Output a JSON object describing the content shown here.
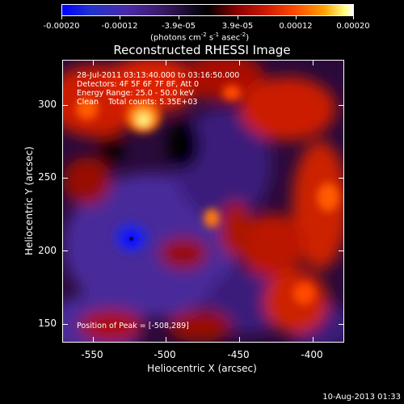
{
  "colorbar": {
    "ticks": [
      "-0.00020",
      "-0.00012",
      "-3.9e-05",
      "3.9e-05",
      "0.00012",
      "0.00020"
    ],
    "unit": "(photons cm",
    "unit_exp1": "-2",
    "unit_mid1": " s",
    "unit_exp2": "-1",
    "unit_mid2": " asec",
    "unit_exp3": "-2",
    "unit_end": ")"
  },
  "title": "Reconstructed RHESSI Image",
  "overlay": {
    "line1": "28-Jul-2011 03:13:40.000 to 03:16:50.000",
    "line2": "Detectors: 4F 5F 6F 7F 8F, Att 0",
    "line3": "Energy Range: 25.0 - 50.0 keV",
    "line4": "Clean    Total counts: 5.35E+03",
    "peak": "Position of Peak = [-508,289]"
  },
  "axes": {
    "xlabel": "Heliocentric X (arcsec)",
    "ylabel": "Heliocentric Y (arcsec)",
    "xticks": [
      "-550",
      "-500",
      "-450",
      "-400"
    ],
    "yticks": [
      "300",
      "250",
      "200",
      "150"
    ]
  },
  "footer": "10-Aug-2013 01:33"
}
